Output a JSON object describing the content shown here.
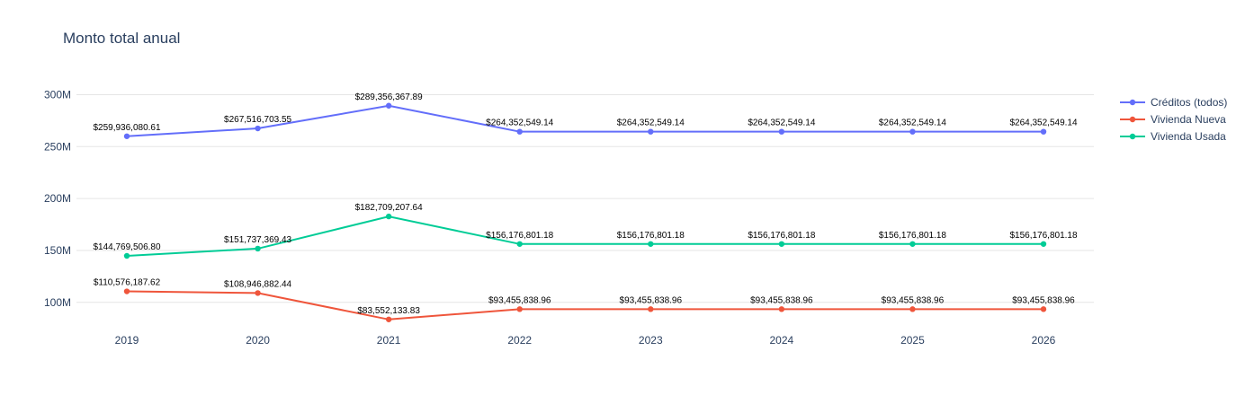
{
  "chart_data": {
    "type": "line",
    "title": "Monto total anual",
    "xlabel": "",
    "ylabel": "",
    "x": [
      "2019",
      "2020",
      "2021",
      "2022",
      "2023",
      "2024",
      "2025",
      "2026"
    ],
    "ylim": [
      73000000,
      322000000
    ],
    "yticks": [
      100000000,
      150000000,
      200000000,
      250000000,
      300000000
    ],
    "ytick_labels": [
      "100M",
      "150M",
      "200M",
      "250M",
      "300M"
    ],
    "grid": true,
    "legend_position": "top-right",
    "series": [
      {
        "name": "Créditos (todos)",
        "color": "#636efa",
        "values": [
          259936080.61,
          267516703.55,
          289356367.89,
          264352549.14,
          264352549.14,
          264352549.14,
          264352549.14,
          264352549.14
        ],
        "labels": [
          "$259,936,080.61",
          "$267,516,703.55",
          "$289,356,367.89",
          "$264,352,549.14",
          "$264,352,549.14",
          "$264,352,549.14",
          "$264,352,549.14",
          "$264,352,549.14"
        ]
      },
      {
        "name": "Vivienda Nueva",
        "color": "#ef553b",
        "values": [
          110576187.62,
          108946882.44,
          83552133.83,
          93455838.96,
          93455838.96,
          93455838.96,
          93455838.96,
          93455838.96
        ],
        "labels": [
          "$110,576,187.62",
          "$108,946,882.44",
          "$83,552,133.83",
          "$93,455,838.96",
          "$93,455,838.96",
          "$93,455,838.96",
          "$93,455,838.96",
          "$93,455,838.96"
        ]
      },
      {
        "name": "Vivienda Usada",
        "color": "#00cc96",
        "values": [
          144769506.8,
          151737369.43,
          182709207.64,
          156176801.18,
          156176801.18,
          156176801.18,
          156176801.18,
          156176801.18
        ],
        "labels": [
          "$144,769,506.80",
          "$151,737,369.43",
          "$182,709,207.64",
          "$156,176,801.18",
          "$156,176,801.18",
          "$156,176,801.18",
          "$156,176,801.18",
          "$156,176,801.18"
        ]
      }
    ]
  }
}
